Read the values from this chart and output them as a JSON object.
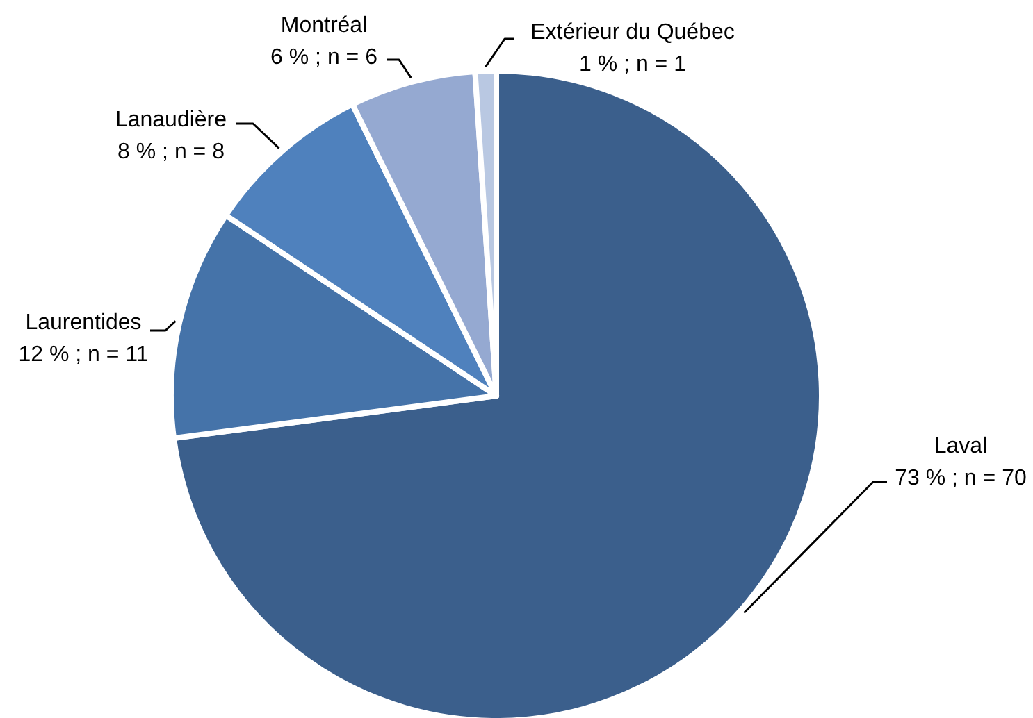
{
  "chart_data": {
    "type": "pie",
    "categories": [
      "Laval",
      "Laurentides",
      "Lanaudière",
      "Montréal",
      "Extérieur du Québec"
    ],
    "values": [
      70,
      11,
      8,
      6,
      1
    ],
    "value_labels": [
      "73 % ; n = 70",
      "12 % ; n = 11",
      "8 % ; n = 8",
      "6 % ; n = 6",
      "1 % ; n = 1"
    ],
    "colors": [
      "#3b5f8c",
      "#4573a9",
      "#4f81bd",
      "#95a9d1",
      "#b9c8e2"
    ]
  }
}
